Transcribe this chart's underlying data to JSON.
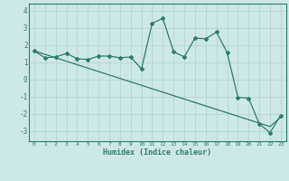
{
  "xlabel": "Humidex (Indice chaleur)",
  "x_data": [
    0,
    1,
    2,
    3,
    4,
    5,
    6,
    7,
    8,
    9,
    10,
    11,
    12,
    13,
    14,
    15,
    16,
    17,
    18,
    19,
    20,
    21,
    22,
    23
  ],
  "y_curve": [
    1.65,
    1.25,
    1.3,
    1.5,
    1.2,
    1.15,
    1.35,
    1.35,
    1.25,
    1.3,
    0.6,
    3.25,
    3.55,
    1.6,
    1.3,
    2.4,
    2.35,
    2.75,
    1.55,
    -1.05,
    -1.1,
    -2.6,
    -3.1,
    -2.1
  ],
  "y_regression": [
    1.65,
    1.45,
    1.25,
    1.05,
    0.85,
    0.65,
    0.45,
    0.25,
    0.05,
    -0.15,
    -0.35,
    -0.55,
    -0.75,
    -0.95,
    -1.15,
    -1.35,
    -1.55,
    -1.75,
    -1.95,
    -2.15,
    -2.35,
    -2.55,
    -2.75,
    -2.2
  ],
  "line_color": "#2e7d6e",
  "bg_color": "#cde8e5",
  "grid_color": "#b5d5d2",
  "ylim": [
    -3.6,
    4.4
  ],
  "xlim": [
    -0.5,
    23.5
  ],
  "yticks": [
    -3,
    -2,
    -1,
    0,
    1,
    2,
    3,
    4
  ],
  "xticks": [
    0,
    1,
    2,
    3,
    4,
    5,
    6,
    7,
    8,
    9,
    10,
    11,
    12,
    13,
    14,
    15,
    16,
    17,
    18,
    19,
    20,
    21,
    22,
    23
  ]
}
